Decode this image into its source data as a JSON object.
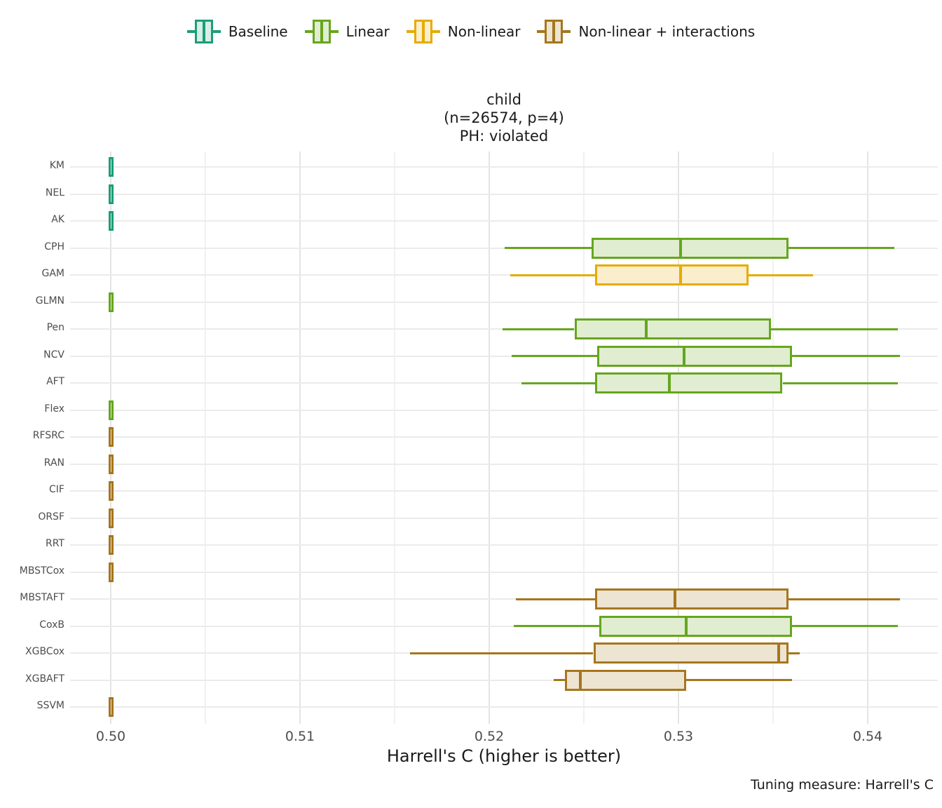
{
  "legend": {
    "items": [
      {
        "label": "Baseline",
        "group": "baseline"
      },
      {
        "label": "Linear",
        "group": "linear"
      },
      {
        "label": "Non-linear",
        "group": "nonlinear"
      },
      {
        "label": "Non-linear + interactions",
        "group": "interactions"
      }
    ]
  },
  "title": {
    "line1": "child",
    "line2": "(n=26574, p=4)",
    "line3": "PH: violated"
  },
  "xaxis": {
    "title": "Harrell's C (higher is better)",
    "tick_labels": [
      "0.50",
      "0.51",
      "0.52",
      "0.53",
      "0.54"
    ]
  },
  "caption": "Tuning measure: Harrell's C",
  "chart_data": {
    "type": "boxplot",
    "orientation": "horizontal",
    "title": "child (n=26574, p=4) PH: violated",
    "xlabel": "Harrell's C (higher is better)",
    "xlim": [
      0.4978,
      0.5438
    ],
    "x_ticks": [
      0.5,
      0.51,
      0.52,
      0.53,
      0.54
    ],
    "x_minor_ticks": [
      0.505,
      0.515,
      0.525,
      0.535
    ],
    "grid": true,
    "legend_position": "top",
    "groups": {
      "baseline": {
        "label": "Baseline",
        "stroke": "#1B9E77",
        "fill": "#D9EEE6"
      },
      "linear": {
        "label": "Linear",
        "stroke": "#66A61E",
        "fill": "#E0EDD1"
      },
      "nonlinear": {
        "label": "Non-linear",
        "stroke": "#E6AB02",
        "fill": "#FAEECC"
      },
      "interactions": {
        "label": "Non-linear + interactions",
        "stroke": "#A6761D",
        "fill": "#EDE4D2"
      }
    },
    "series": [
      {
        "model": "KM",
        "group": "baseline",
        "min": 0.5,
        "q1": 0.5,
        "median": 0.5,
        "q3": 0.5,
        "max": 0.5
      },
      {
        "model": "NEL",
        "group": "baseline",
        "min": 0.5,
        "q1": 0.5,
        "median": 0.5,
        "q3": 0.5,
        "max": 0.5
      },
      {
        "model": "AK",
        "group": "baseline",
        "min": 0.5,
        "q1": 0.5,
        "median": 0.5,
        "q3": 0.5,
        "max": 0.5
      },
      {
        "model": "CPH",
        "group": "linear",
        "min": 0.5208,
        "q1": 0.5254,
        "median": 0.5301,
        "q3": 0.5358,
        "max": 0.5414
      },
      {
        "model": "GAM",
        "group": "nonlinear",
        "min": 0.5211,
        "q1": 0.5256,
        "median": 0.5301,
        "q3": 0.5337,
        "max": 0.5371
      },
      {
        "model": "GLMN",
        "group": "linear",
        "min": 0.5,
        "q1": 0.5,
        "median": 0.5,
        "q3": 0.5,
        "max": 0.5
      },
      {
        "model": "Pen",
        "group": "linear",
        "min": 0.5207,
        "q1": 0.5245,
        "median": 0.5283,
        "q3": 0.5349,
        "max": 0.5416
      },
      {
        "model": "NCV",
        "group": "linear",
        "min": 0.5212,
        "q1": 0.5257,
        "median": 0.5303,
        "q3": 0.536,
        "max": 0.5417
      },
      {
        "model": "AFT",
        "group": "linear",
        "min": 0.5217,
        "q1": 0.5256,
        "median": 0.5295,
        "q3": 0.5355,
        "max": 0.5416
      },
      {
        "model": "Flex",
        "group": "linear",
        "min": 0.5,
        "q1": 0.5,
        "median": 0.5,
        "q3": 0.5,
        "max": 0.5
      },
      {
        "model": "RFSRC",
        "group": "interactions",
        "min": 0.5,
        "q1": 0.5,
        "median": 0.5,
        "q3": 0.5,
        "max": 0.5
      },
      {
        "model": "RAN",
        "group": "interactions",
        "min": 0.5,
        "q1": 0.5,
        "median": 0.5,
        "q3": 0.5,
        "max": 0.5
      },
      {
        "model": "CIF",
        "group": "interactions",
        "min": 0.5,
        "q1": 0.5,
        "median": 0.5,
        "q3": 0.5,
        "max": 0.5
      },
      {
        "model": "ORSF",
        "group": "interactions",
        "min": 0.5,
        "q1": 0.5,
        "median": 0.5,
        "q3": 0.5,
        "max": 0.5
      },
      {
        "model": "RRT",
        "group": "interactions",
        "min": 0.5,
        "q1": 0.5,
        "median": 0.5,
        "q3": 0.5,
        "max": 0.5
      },
      {
        "model": "MBSTCox",
        "group": "interactions",
        "min": 0.5,
        "q1": 0.5,
        "median": 0.5,
        "q3": 0.5,
        "max": 0.5
      },
      {
        "model": "MBSTAFT",
        "group": "interactions",
        "min": 0.5214,
        "q1": 0.5256,
        "median": 0.5298,
        "q3": 0.5358,
        "max": 0.5417
      },
      {
        "model": "CoxB",
        "group": "linear",
        "min": 0.5213,
        "q1": 0.5258,
        "median": 0.5304,
        "q3": 0.536,
        "max": 0.5416
      },
      {
        "model": "XGBCox",
        "group": "interactions",
        "min": 0.5158,
        "q1": 0.5255,
        "median": 0.5353,
        "q3": 0.5358,
        "max": 0.5364
      },
      {
        "model": "XGBAFT",
        "group": "interactions",
        "min": 0.5234,
        "q1": 0.524,
        "median": 0.5248,
        "q3": 0.5304,
        "max": 0.536
      },
      {
        "model": "SSVM",
        "group": "interactions",
        "min": 0.5,
        "q1": 0.5,
        "median": 0.5,
        "q3": 0.5,
        "max": 0.5
      }
    ]
  }
}
